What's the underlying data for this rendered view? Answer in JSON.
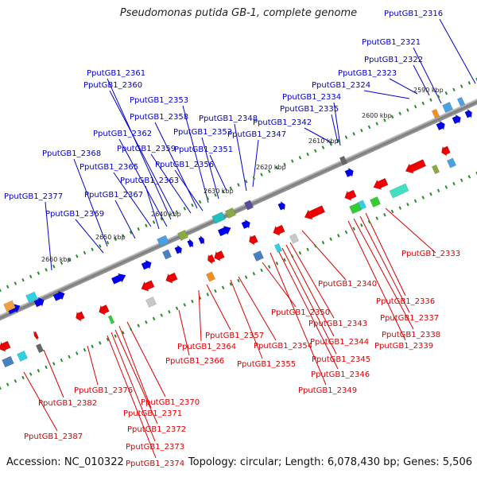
{
  "title": "Pseudomonas putida GB-1, complete genome",
  "footer": {
    "accession": "Accession: NC_010322",
    "summary": "Topology: circular; Length: 6,078,430 bp; Genes: 5,506"
  },
  "colors": {
    "forward_label": "#0000cc",
    "reverse_label": "#dd0000",
    "backbone": "#888888",
    "ticks": "#2a8a2a",
    "forward_gene": "#0000ee",
    "reverse_gene": "#ee0000"
  },
  "scale_labels": [
    "2590 kbp",
    "2600 kbp",
    "2610 kbp",
    "2620 kbp",
    "2630 kbp",
    "2640 kbp",
    "2650 kbp",
    "2660 kbp"
  ],
  "forward_labels": [
    "PputGB1_2316",
    "PputGB1_2321",
    "PputGB1_2322",
    "PputGB1_2323",
    "PputGB1_2324",
    "PputGB1_2334",
    "PputGB1_2335",
    "PputGB1_2342",
    "PputGB1_2347",
    "PputGB1_2348",
    "PputGB1_2351",
    "PputGB1_2352",
    "PputGB1_2353",
    "PputGB1_2356",
    "PputGB1_2358",
    "PputGB1_2359",
    "PputGB1_2360",
    "PputGB1_2361",
    "PputGB1_2362",
    "PputGB1_2363",
    "PputGB1_2365",
    "PputGB1_2367",
    "PputGB1_2368",
    "PputGB1_2369",
    "PputGB1_2377"
  ],
  "reverse_labels": [
    "PputGB1_2333",
    "PputGB1_2336",
    "PputGB1_2337",
    "PputGB1_2338",
    "PputGB1_2339",
    "PputGB1_2340",
    "PputGB1_2343",
    "PputGB1_2344",
    "PputGB1_2345",
    "PputGB1_2346",
    "PputGB1_2349",
    "PputGB1_2350",
    "PputGB1_2354",
    "PputGB1_2355",
    "PputGB1_2357",
    "PputGB1_2364",
    "PputGB1_2366",
    "PputGB1_2370",
    "PputGB1_2371",
    "PputGB1_2372",
    "PputGB1_2373",
    "PputGB1_2374",
    "PputGB1_2376",
    "PputGB1_2382",
    "PputGB1_2387"
  ]
}
